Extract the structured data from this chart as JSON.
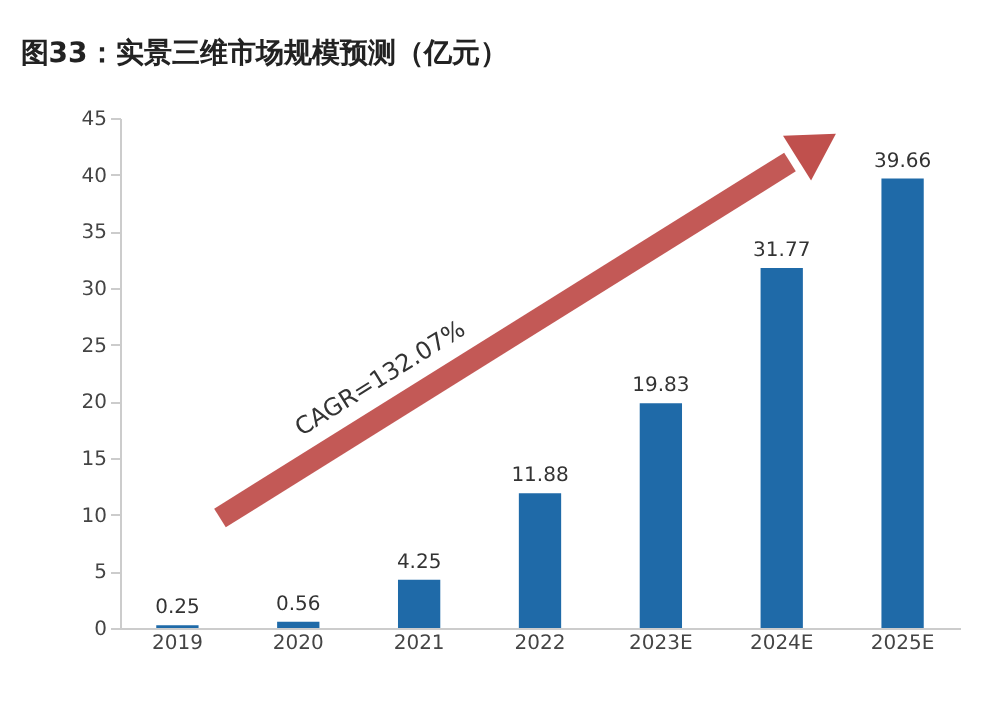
{
  "chart_data": {
    "type": "bar",
    "title": "图33：实景三维市场规模预测（亿元）",
    "categories": [
      "2019",
      "2020",
      "2021",
      "2022",
      "2023E",
      "2024E",
      "2025E"
    ],
    "values": [
      0.25,
      0.56,
      4.25,
      11.88,
      19.83,
      31.77,
      39.66
    ],
    "color": "#1f6aa8",
    "ylim": [
      0,
      45
    ],
    "yticks": [
      0,
      5,
      10,
      15,
      20,
      25,
      30,
      35,
      40,
      45
    ],
    "data_labels": true,
    "grid": false,
    "annotations": [
      "CAGR=132.07%"
    ]
  }
}
